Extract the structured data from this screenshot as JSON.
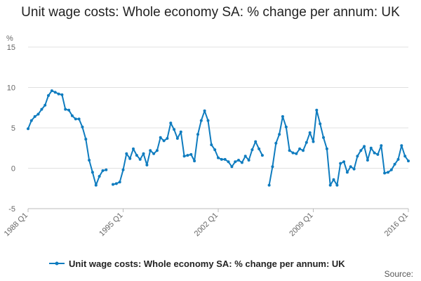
{
  "chart_data": {
    "type": "line",
    "title": "Unit wage costs: Whole economy SA: % change per annum: UK",
    "ylabel": "%",
    "ylim": [
      -5,
      15
    ],
    "yticks": [
      15,
      10,
      5,
      0,
      -5
    ],
    "xlim": [
      1988.0,
      2016.0
    ],
    "xticks": [
      {
        "label": "1988 Q1",
        "value": 1988.0
      },
      {
        "label": "1995 Q1",
        "value": 1995.0
      },
      {
        "label": "2002 Q1",
        "value": 2002.0
      },
      {
        "label": "2009 Q1",
        "value": 2009.0
      },
      {
        "label": "2016 Q1",
        "value": 2016.0
      }
    ],
    "grid": true,
    "legend_position": "bottom",
    "source_label": "Source:",
    "series": [
      {
        "name": "Unit wage costs: Whole economy SA: % change per annum: UK",
        "color": "#0f7cbf",
        "segments": [
          {
            "x_start": 1988.0,
            "values": [
              4.9,
              5.9,
              6.4,
              6.7,
              7.3,
              7.8,
              9.0,
              9.6,
              9.4,
              9.2,
              9.1,
              7.3,
              7.2,
              6.5,
              6.1,
              6.1,
              5.1,
              3.6,
              1.0,
              -0.5,
              -2.1,
              -1.0,
              -0.3,
              -0.2
            ]
          },
          {
            "x_start": 1994.25,
            "values": [
              -2.0,
              -1.9,
              -1.7,
              -0.2,
              1.8,
              1.2,
              2.4,
              1.6,
              1.1,
              1.8,
              0.4,
              2.2,
              1.8,
              2.2,
              3.8,
              3.4,
              3.7,
              5.6,
              4.8,
              3.7,
              4.5,
              1.5,
              1.6,
              1.7,
              0.9,
              4.2,
              5.9,
              7.1,
              5.9,
              2.9,
              2.3,
              1.3,
              1.1,
              1.1,
              0.8,
              0.2,
              0.8,
              1.0,
              0.7,
              1.5,
              1.0,
              2.3,
              3.3,
              2.4,
              1.6
            ]
          },
          {
            "x_start": 2005.75,
            "values": [
              -2.1,
              0.2,
              3.1,
              4.2,
              6.4,
              5.1,
              2.2,
              1.9,
              1.8,
              2.4,
              2.2,
              3.2,
              4.4,
              3.3,
              7.2,
              5.5,
              3.8,
              2.4,
              -2.1,
              -1.4,
              -2.1,
              0.6,
              0.8,
              -0.5,
              0.2,
              -0.1,
              1.5,
              2.2,
              2.7,
              1.0,
              2.5,
              1.9,
              1.7,
              2.8,
              -0.6,
              -0.5,
              -0.2,
              0.5,
              1.1,
              2.8,
              1.5,
              0.9
            ]
          }
        ]
      }
    ]
  }
}
